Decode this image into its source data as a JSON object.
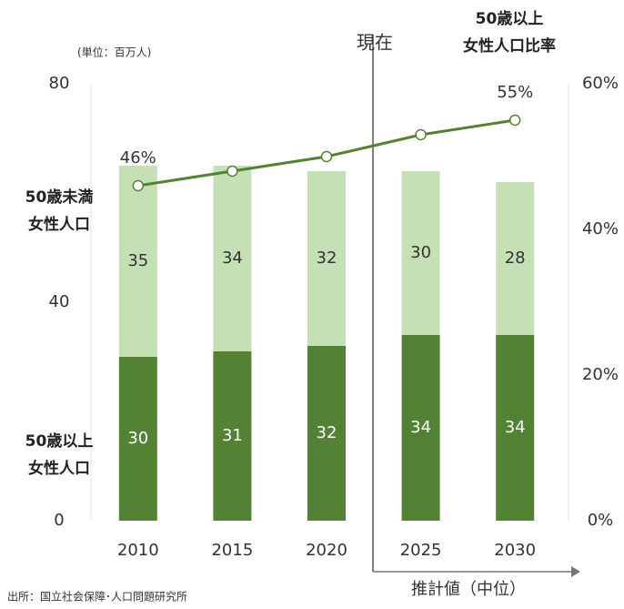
{
  "chart_data": {
    "type": "bar",
    "stacked": true,
    "unit_label": "(単位：百万人)",
    "annotations": {
      "now": "現在",
      "projection": "推計値（中位）"
    },
    "source": "出所：国立社会保障･人口問題研究所",
    "categories": [
      "2010",
      "2015",
      "2020",
      "2025",
      "2030"
    ],
    "series": [
      {
        "name": "50歳以上\n女性人口",
        "color": "#548235",
        "label_color": "#ffffff",
        "values": [
          30,
          31,
          32,
          34,
          34
        ]
      },
      {
        "name": "50歳未満\n女性人口",
        "color": "#c5e0b4",
        "label_color": "#333333",
        "values": [
          35,
          34,
          32,
          30,
          28
        ]
      },
      {
        "name": "50歳以上\n女性人口比率",
        "type": "line",
        "axis": "y2",
        "color": "#548235",
        "values": [
          46,
          48,
          50,
          53,
          55
        ],
        "value_labels": [
          "46%",
          null,
          null,
          null,
          "55%"
        ]
      }
    ],
    "ylim": [
      0,
      80
    ],
    "yticks": [
      0,
      40,
      80
    ],
    "y2lim": [
      0,
      60
    ],
    "y2ticks": [
      {
        "value": 0,
        "label": "0%"
      },
      {
        "value": 20,
        "label": "20%"
      },
      {
        "value": 40,
        "label": "40%"
      },
      {
        "value": 60,
        "label": "60%"
      }
    ]
  }
}
